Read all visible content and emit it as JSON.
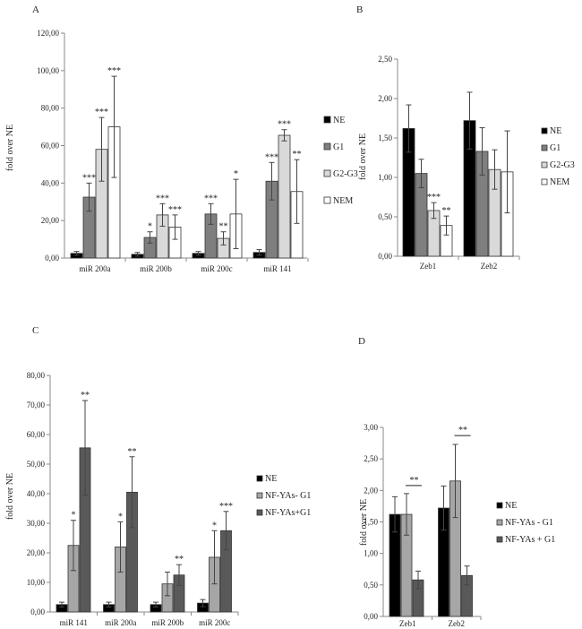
{
  "chart_data": [
    {
      "panel": "A",
      "type": "bar",
      "ylabel": "fold over NE",
      "ylim": [
        0,
        120
      ],
      "yticks": [
        0,
        20,
        40,
        60,
        80,
        100,
        120
      ],
      "tick_labels": [
        "0,00",
        "20,00",
        "40,00",
        "60,00",
        "80,00",
        "100,00",
        "120,00"
      ],
      "categories": [
        "miR 200a",
        "miR 200b",
        "miR 200c",
        "miR 141"
      ],
      "series": [
        {
          "name": "NE",
          "color": "#000000",
          "values": [
            2.5,
            2.0,
            2.5,
            3.0
          ],
          "errors": [
            1.0,
            1.0,
            1.0,
            1.5
          ],
          "sig": [
            "",
            "",
            "",
            ""
          ]
        },
        {
          "name": "G1",
          "color": "#7f7f7f",
          "values": [
            32.5,
            11.0,
            23.5,
            41.0
          ],
          "errors": [
            7.5,
            3.0,
            5.5,
            10.0
          ],
          "sig": [
            "***",
            "*",
            "***",
            "***"
          ]
        },
        {
          "name": "G2-G3",
          "color": "#d9d9d9",
          "values": [
            58.0,
            23.0,
            10.5,
            65.5
          ],
          "errors": [
            17.0,
            6.0,
            3.5,
            3.0
          ],
          "sig": [
            "***",
            "***",
            "**",
            "***"
          ]
        },
        {
          "name": "NEM",
          "color": "#ffffff",
          "values": [
            70.0,
            16.5,
            23.5,
            35.5
          ],
          "errors": [
            27.0,
            6.5,
            18.5,
            17.0
          ],
          "sig": [
            "***",
            "***",
            "*",
            "**"
          ]
        }
      ],
      "legend": [
        {
          "label": "NE",
          "color": "#000000"
        },
        {
          "label": "G1",
          "color": "#7f7f7f"
        },
        {
          "label": "G2-G3",
          "color": "#d9d9d9"
        },
        {
          "label": "NEM",
          "color": "#ffffff"
        }
      ]
    },
    {
      "panel": "B",
      "type": "bar",
      "ylabel": "fold over NE",
      "ylim": [
        0,
        2.5
      ],
      "yticks": [
        0,
        0.5,
        1.0,
        1.5,
        2.0,
        2.5
      ],
      "tick_labels": [
        "0,00",
        "0,50",
        "1,00",
        "1,50",
        "2,00",
        "2,50"
      ],
      "categories": [
        "Zeb1",
        "Zeb2"
      ],
      "series": [
        {
          "name": "NE",
          "color": "#000000",
          "values": [
            1.62,
            1.72
          ],
          "errors": [
            0.3,
            0.36
          ],
          "sig": [
            "",
            ""
          ]
        },
        {
          "name": "G1",
          "color": "#7f7f7f",
          "values": [
            1.05,
            1.33
          ],
          "errors": [
            0.18,
            0.3
          ],
          "sig": [
            "",
            ""
          ]
        },
        {
          "name": "G2-G3",
          "color": "#d9d9d9",
          "values": [
            0.58,
            1.1
          ],
          "errors": [
            0.1,
            0.25
          ],
          "sig": [
            "***",
            ""
          ]
        },
        {
          "name": "NEM",
          "color": "#ffffff",
          "values": [
            0.39,
            1.07
          ],
          "errors": [
            0.12,
            0.52
          ],
          "sig": [
            "**",
            ""
          ]
        }
      ],
      "legend": [
        {
          "label": "NE",
          "color": "#000000"
        },
        {
          "label": "G1",
          "color": "#7f7f7f"
        },
        {
          "label": "G2-G3",
          "color": "#d9d9d9"
        },
        {
          "label": "NEM",
          "color": "#ffffff"
        }
      ]
    },
    {
      "panel": "C",
      "type": "bar",
      "ylabel": "fold over NE",
      "ylim": [
        0,
        80
      ],
      "yticks": [
        0,
        10,
        20,
        30,
        40,
        50,
        60,
        70,
        80
      ],
      "tick_labels": [
        "0,00",
        "10,00",
        "20,00",
        "30,00",
        "40,00",
        "50,00",
        "60,00",
        "70,00",
        "80,00"
      ],
      "categories": [
        "miR 141",
        "miR 200a",
        "miR 200b",
        "miR 200c"
      ],
      "series": [
        {
          "name": "NE",
          "color": "#000000",
          "values": [
            2.5,
            2.5,
            2.5,
            3.0
          ],
          "errors": [
            0.8,
            0.8,
            0.8,
            1.2
          ],
          "sig": [
            "",
            "",
            "",
            ""
          ]
        },
        {
          "name": "NF-YAs- G1",
          "color": "#a6a6a6",
          "values": [
            22.5,
            22.0,
            9.5,
            18.5
          ],
          "errors": [
            8.5,
            8.5,
            4.0,
            9.0
          ],
          "sig": [
            "*",
            "*",
            "",
            "*"
          ]
        },
        {
          "name": "NF-YAs+G1",
          "color": "#595959",
          "values": [
            55.5,
            40.5,
            12.5,
            27.5
          ],
          "errors": [
            16.0,
            12.0,
            3.5,
            6.5
          ],
          "sig": [
            "**",
            "**",
            "**",
            "***"
          ]
        }
      ],
      "legend": [
        {
          "label": "NE",
          "color": "#000000"
        },
        {
          "label": "NF-YAs- G1",
          "color": "#a6a6a6"
        },
        {
          "label": "NF-YAs+G1",
          "color": "#595959"
        }
      ]
    },
    {
      "panel": "D",
      "type": "bar",
      "ylabel": "fold over NE",
      "ylim": [
        0,
        3.0
      ],
      "yticks": [
        0,
        0.5,
        1.0,
        1.5,
        2.0,
        2.5,
        3.0
      ],
      "tick_labels": [
        "0,00",
        "0,50",
        "1,00",
        "1,50",
        "2,00",
        "2,50",
        "3,00"
      ],
      "categories": [
        "Zeb1",
        "Zeb2"
      ],
      "series": [
        {
          "name": "NE",
          "color": "#000000",
          "values": [
            1.62,
            1.72
          ],
          "errors": [
            0.28,
            0.35
          ],
          "sig": [
            "",
            ""
          ]
        },
        {
          "name": "NF-YAs - G1",
          "color": "#a6a6a6",
          "values": [
            1.62,
            2.15
          ],
          "errors": [
            0.33,
            0.58
          ],
          "sig": [
            "",
            ""
          ]
        },
        {
          "name": "NF-YAs + G1",
          "color": "#595959",
          "values": [
            0.58,
            0.65
          ],
          "errors": [
            0.14,
            0.15
          ],
          "sig": [
            "",
            ""
          ]
        }
      ],
      "brackets": [
        {
          "category": 0,
          "from_series": 1,
          "to_series": 2,
          "label": "**"
        },
        {
          "category": 1,
          "from_series": 1,
          "to_series": 2,
          "label": "**"
        }
      ],
      "legend": [
        {
          "label": "NE",
          "color": "#000000"
        },
        {
          "label": "NF-YAs - G1",
          "color": "#a6a6a6"
        },
        {
          "label": "NF-YAs + G1",
          "color": "#595959"
        }
      ]
    }
  ]
}
